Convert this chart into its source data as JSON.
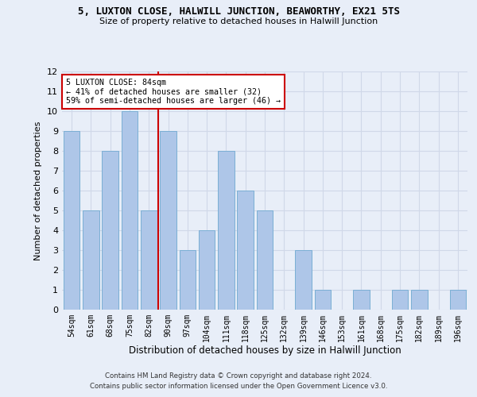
{
  "title": "5, LUXTON CLOSE, HALWILL JUNCTION, BEAWORTHY, EX21 5TS",
  "subtitle": "Size of property relative to detached houses in Halwill Junction",
  "xlabel": "Distribution of detached houses by size in Halwill Junction",
  "ylabel": "Number of detached properties",
  "categories": [
    "54sqm",
    "61sqm",
    "68sqm",
    "75sqm",
    "82sqm",
    "90sqm",
    "97sqm",
    "104sqm",
    "111sqm",
    "118sqm",
    "125sqm",
    "132sqm",
    "139sqm",
    "146sqm",
    "153sqm",
    "161sqm",
    "168sqm",
    "175sqm",
    "182sqm",
    "189sqm",
    "196sqm"
  ],
  "values": [
    9,
    5,
    8,
    10,
    5,
    9,
    3,
    4,
    8,
    6,
    5,
    0,
    3,
    1,
    0,
    1,
    0,
    1,
    1,
    0,
    1
  ],
  "bar_color": "#aec6e8",
  "bar_edgecolor": "#7aafd4",
  "highlight_index": 4,
  "highlight_color": "#cc0000",
  "annotation_line1": "5 LUXTON CLOSE: 84sqm",
  "annotation_line2": "← 41% of detached houses are smaller (32)",
  "annotation_line3": "59% of semi-detached houses are larger (46) →",
  "annotation_box_facecolor": "#ffffff",
  "annotation_box_edgecolor": "#cc0000",
  "ylim": [
    0,
    12
  ],
  "yticks": [
    0,
    1,
    2,
    3,
    4,
    5,
    6,
    7,
    8,
    9,
    10,
    11,
    12
  ],
  "grid_color": "#d0d8e8",
  "background_color": "#e8eef8",
  "footer1": "Contains HM Land Registry data © Crown copyright and database right 2024.",
  "footer2": "Contains public sector information licensed under the Open Government Licence v3.0."
}
